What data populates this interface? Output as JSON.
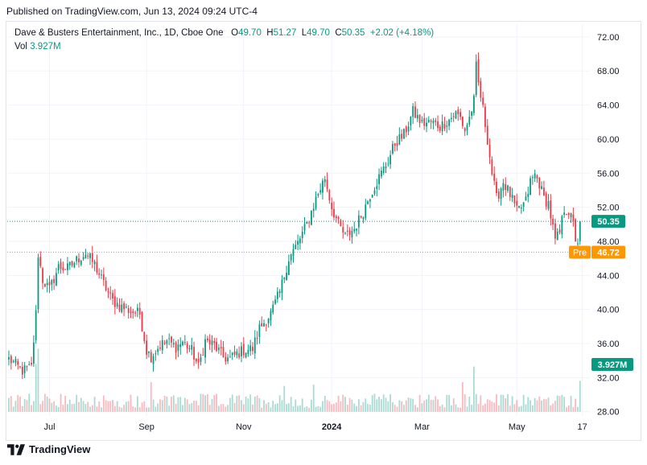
{
  "published": "Published on TradingView.com, Jun 13, 2024 09:24 UTC-4",
  "legend": {
    "symbol": "Dave & Busters Entertainment, Inc., 1D, Cboe One",
    "o_label": "O",
    "o": "49.70",
    "h_label": "H",
    "h": "51.27",
    "l_label": "L",
    "l": "49.70",
    "c_label": "C",
    "c": "50.35",
    "change": "+2.02 (+4.18%)",
    "vol_label": "Vol",
    "vol": "3.927M"
  },
  "footer": {
    "brand": "TradingView"
  },
  "colors": {
    "up": "#089981",
    "down": "#f23645",
    "premarket": "#ff9800",
    "grid": "#f0f3fa",
    "text": "#131722"
  },
  "chart_data": {
    "type": "candlestick",
    "y_ticks": [
      "72.00",
      "68.00",
      "64.00",
      "60.00",
      "56.00",
      "52.00",
      "48.00",
      "44.00",
      "40.00",
      "36.00",
      "32.00",
      "28.00"
    ],
    "ylim": [
      27.5,
      73.5
    ],
    "x_ticks": [
      {
        "label": "Jul",
        "i": 18,
        "bold": false
      },
      {
        "label": "Sep",
        "i": 61,
        "bold": false
      },
      {
        "label": "Nov",
        "i": 104,
        "bold": false
      },
      {
        "label": "2024",
        "i": 143,
        "bold": true
      },
      {
        "label": "Mar",
        "i": 183,
        "bold": false
      },
      {
        "label": "May",
        "i": 225,
        "bold": false
      },
      {
        "label": "17",
        "i": 254,
        "bold": false
      }
    ],
    "n_slots": 257,
    "last_price": 50.35,
    "last_price_label": "50.35",
    "premarket_label": "Pre",
    "premarket_price": 46.72,
    "premarket_price_label": "46.72",
    "volume_label": "3.927M",
    "anchors": [
      [
        0,
        34.2
      ],
      [
        6,
        32.8
      ],
      [
        10,
        33.2
      ],
      [
        12,
        39.5
      ],
      [
        13,
        46.5
      ],
      [
        15,
        43.5
      ],
      [
        18,
        42.3
      ],
      [
        22,
        45.0
      ],
      [
        26,
        44.8
      ],
      [
        30,
        45.8
      ],
      [
        34,
        46.6
      ],
      [
        38,
        45.3
      ],
      [
        42,
        43.0
      ],
      [
        46,
        41.0
      ],
      [
        50,
        40.3
      ],
      [
        54,
        39.8
      ],
      [
        58,
        39.5
      ],
      [
        61,
        35.2
      ],
      [
        63,
        34.5
      ],
      [
        67,
        35.8
      ],
      [
        70,
        36.3
      ],
      [
        74,
        35.6
      ],
      [
        77,
        36.2
      ],
      [
        81,
        35.2
      ],
      [
        84,
        33.2
      ],
      [
        87,
        36.3
      ],
      [
        91,
        35.8
      ],
      [
        95,
        34.4
      ],
      [
        98,
        34.2
      ],
      [
        101,
        34.8
      ],
      [
        104,
        35.2
      ],
      [
        108,
        35.4
      ],
      [
        111,
        37.8
      ],
      [
        116,
        39.5
      ],
      [
        120,
        42.0
      ],
      [
        124,
        46.0
      ],
      [
        128,
        47.8
      ],
      [
        132,
        50.0
      ],
      [
        136,
        53.0
      ],
      [
        140,
        55.5
      ],
      [
        143,
        52.0
      ],
      [
        146,
        50.0
      ],
      [
        149,
        48.5
      ],
      [
        153,
        49.5
      ],
      [
        157,
        51.5
      ],
      [
        160,
        53.5
      ],
      [
        164,
        55.5
      ],
      [
        168,
        57.5
      ],
      [
        171,
        59.5
      ],
      [
        175,
        60.5
      ],
      [
        179,
        63.2
      ],
      [
        183,
        61.8
      ],
      [
        187,
        62.0
      ],
      [
        191,
        61.5
      ],
      [
        195,
        62.3
      ],
      [
        198,
        63.0
      ],
      [
        200,
        62.5
      ],
      [
        202,
        61.0
      ],
      [
        204,
        62.5
      ],
      [
        206,
        64.5
      ],
      [
        207,
        68.5
      ],
      [
        208,
        66.5
      ],
      [
        210,
        63.5
      ],
      [
        212,
        60.0
      ],
      [
        214,
        56.0
      ],
      [
        216,
        53.0
      ],
      [
        219,
        55.0
      ],
      [
        222,
        53.5
      ],
      [
        225,
        51.5
      ],
      [
        227,
        52.0
      ],
      [
        229,
        52.7
      ],
      [
        231,
        55.0
      ],
      [
        233,
        55.8
      ],
      [
        235,
        54.8
      ],
      [
        237,
        53.0
      ],
      [
        239,
        52.5
      ],
      [
        241,
        49.5
      ],
      [
        242,
        48.0
      ],
      [
        244,
        49.0
      ],
      [
        246,
        51.8
      ],
      [
        248,
        51.5
      ],
      [
        250,
        50.0
      ],
      [
        251,
        48.3
      ],
      [
        252,
        48.0
      ],
      [
        253,
        50.35
      ]
    ],
    "volume_spikes": {
      "12": 3.7,
      "13": 4.9,
      "63": 2.3,
      "122": 2.0,
      "135": 2.1,
      "201": 2.3,
      "206": 3.5,
      "253": 2.4
    }
  }
}
